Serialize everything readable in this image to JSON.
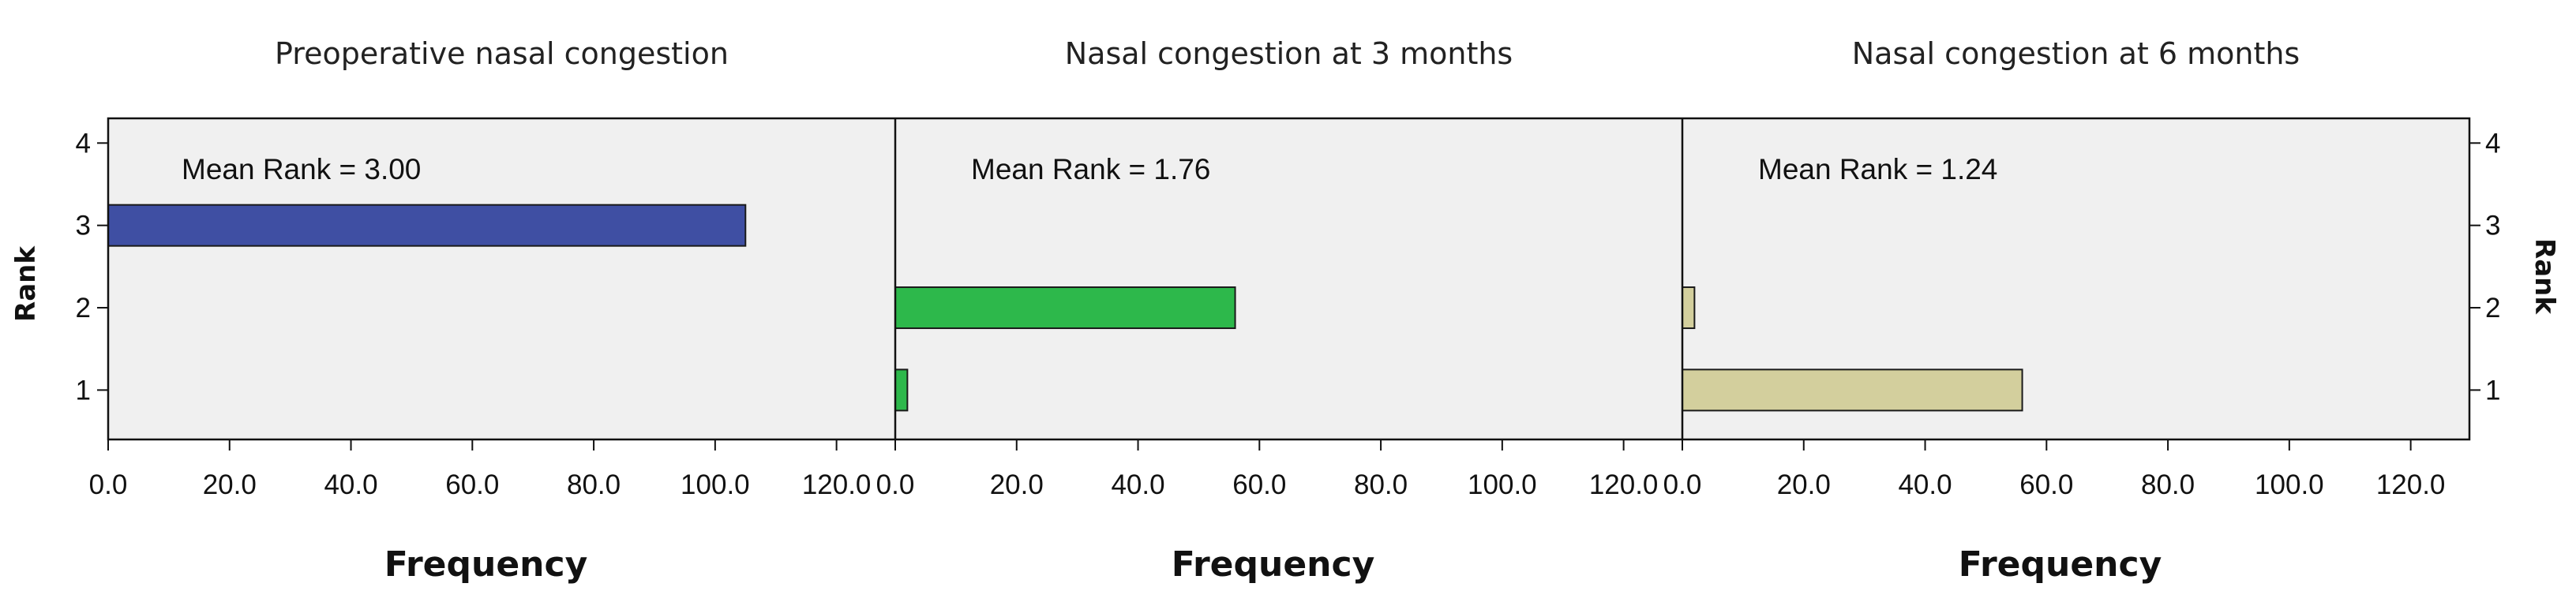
{
  "chart_data": {
    "type": "bar",
    "orientation": "horizontal",
    "ylabel": "Rank",
    "xlabel": "Frequency",
    "y_ticks": [
      "1",
      "2",
      "3",
      "4"
    ],
    "x_ticks": [
      "0.0",
      "20.0",
      "40.0",
      "60.0",
      "80.0",
      "100.0",
      "120.0"
    ],
    "xlim": [
      0,
      130
    ],
    "ylim": [
      0.4,
      4.3
    ],
    "grid": false,
    "panels": [
      {
        "title": "Preoperative nasal congestion",
        "mean_rank_label": "Mean Rank = 3.00",
        "color": "#3f4fa3",
        "ranks": [
          3
        ],
        "values": [
          105
        ]
      },
      {
        "title": "Nasal congestion at 3 months",
        "mean_rank_label": "Mean Rank = 1.76",
        "color": "#2db84b",
        "ranks": [
          1,
          2
        ],
        "values": [
          2,
          56
        ]
      },
      {
        "title": "Nasal congestion at 6 months",
        "mean_rank_label": "Mean Rank = 1.24",
        "color": "#d3cf9d",
        "ranks": [
          1,
          2
        ],
        "values": [
          56,
          2
        ]
      }
    ]
  }
}
